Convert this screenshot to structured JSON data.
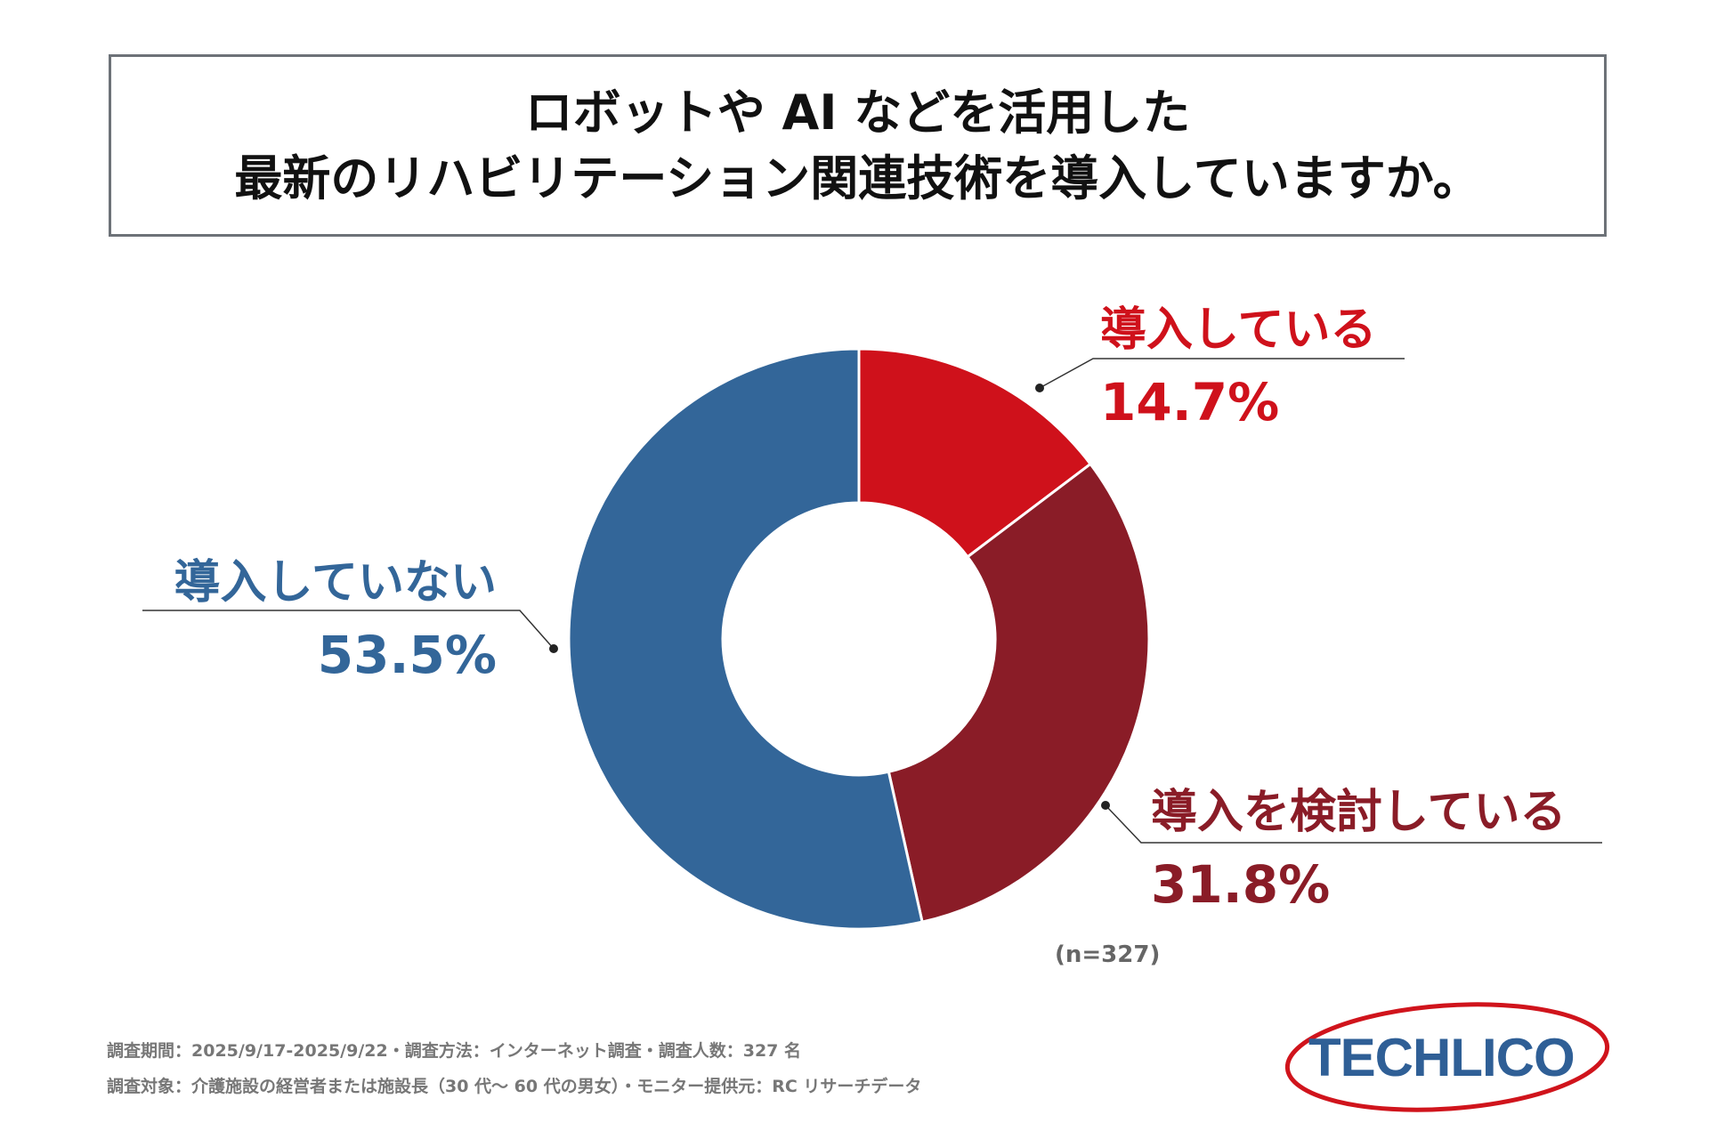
{
  "title": {
    "line1": "ロボットや AI などを活用した",
    "line2": "最新のリハビリテーション関連技術を導入していますか。"
  },
  "chart_data": {
    "type": "pie",
    "donut": true,
    "title": "ロボットや AI などを活用した 最新のリハビリテーション関連技術を導入していますか。",
    "categories": [
      "導入している",
      "導入を検討している",
      "導入していない"
    ],
    "values": [
      14.7,
      31.8,
      53.5
    ],
    "value_labels": [
      "14.7%",
      "31.8%",
      "53.5%"
    ],
    "colors": [
      "#cf111b",
      "#8a1c27",
      "#336699"
    ],
    "legend": "none",
    "sample_size": "(n=327)"
  },
  "footnotes": {
    "line1": "調査期間：2025/9/17-2025/9/22・調査方法：インターネット調査・調査人数：327 名",
    "line2": "調査対象：介護施設の経営者または施設長（30 代～ 60 代の男女）・モニター提供元：RC リサーチデータ"
  },
  "logo": {
    "text": "TECHLICO",
    "text_color": "#2f5f96",
    "ellipse_color": "#d0141c"
  }
}
